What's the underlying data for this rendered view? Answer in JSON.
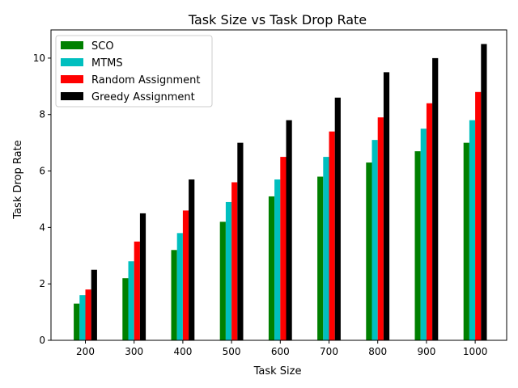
{
  "chart_data": {
    "type": "bar",
    "title": "Task Size vs Task Drop Rate",
    "xlabel": "Task Size",
    "ylabel": "Task Drop Rate",
    "categories": [
      "200",
      "300",
      "400",
      "500",
      "600",
      "700",
      "800",
      "900",
      "1000"
    ],
    "ylim": [
      0,
      11
    ],
    "yticks": [
      "0",
      "2",
      "4",
      "6",
      "8",
      "10"
    ],
    "grid": false,
    "legend_position": "top-left",
    "series": [
      {
        "name": "SCO",
        "color": "#008000",
        "values": [
          1.3,
          2.2,
          3.2,
          4.2,
          5.1,
          5.8,
          6.3,
          6.7,
          7.0
        ]
      },
      {
        "name": "MTMS",
        "color": "#00bfbf",
        "values": [
          1.6,
          2.8,
          3.8,
          4.9,
          5.7,
          6.5,
          7.1,
          7.5,
          7.8
        ]
      },
      {
        "name": "Random Assignment",
        "color": "#ff0000",
        "values": [
          1.8,
          3.5,
          4.6,
          5.6,
          6.5,
          7.4,
          7.9,
          8.4,
          8.8
        ]
      },
      {
        "name": "Greedy Assignment",
        "color": "#000000",
        "values": [
          2.5,
          4.5,
          5.7,
          7.0,
          7.8,
          8.6,
          9.5,
          10.0,
          10.5
        ]
      }
    ]
  }
}
